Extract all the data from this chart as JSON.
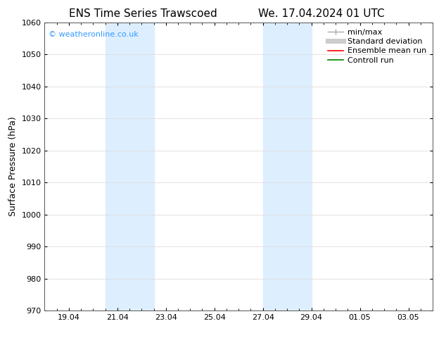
{
  "title_left": "ENS Time Series Trawscoed",
  "title_right": "We. 17.04.2024 01 UTC",
  "ylabel": "Surface Pressure (hPa)",
  "ylim": [
    970,
    1060
  ],
  "yticks": [
    970,
    980,
    990,
    1000,
    1010,
    1020,
    1030,
    1040,
    1050,
    1060
  ],
  "xlim": [
    0,
    16
  ],
  "xtick_labels": [
    "19.04",
    "21.04",
    "23.04",
    "25.04",
    "27.04",
    "29.04",
    "01.05",
    "03.05"
  ],
  "xtick_positions": [
    1,
    3,
    5,
    7,
    9,
    11,
    13,
    15
  ],
  "shaded_bands": [
    {
      "x_start": 2.5,
      "x_end": 4.5,
      "color": "#ddeeff"
    },
    {
      "x_start": 9.0,
      "x_end": 11.0,
      "color": "#ddeeff"
    }
  ],
  "watermark_text": "© weatheronline.co.uk",
  "watermark_color": "#3399ff",
  "legend_items": [
    {
      "label": "min/max",
      "color": "#aaaaaa",
      "lw": 1.0
    },
    {
      "label": "Standard deviation",
      "color": "#cccccc",
      "lw": 5.0
    },
    {
      "label": "Ensemble mean run",
      "color": "#ff0000",
      "lw": 1.2
    },
    {
      "label": "Controll run",
      "color": "#008000",
      "lw": 1.2
    }
  ],
  "bg_color": "#ffffff",
  "plot_bg_color": "#ffffff",
  "grid_color": "#dddddd",
  "title_fontsize": 11,
  "axis_label_fontsize": 9,
  "tick_fontsize": 8,
  "watermark_fontsize": 8,
  "legend_fontsize": 8
}
